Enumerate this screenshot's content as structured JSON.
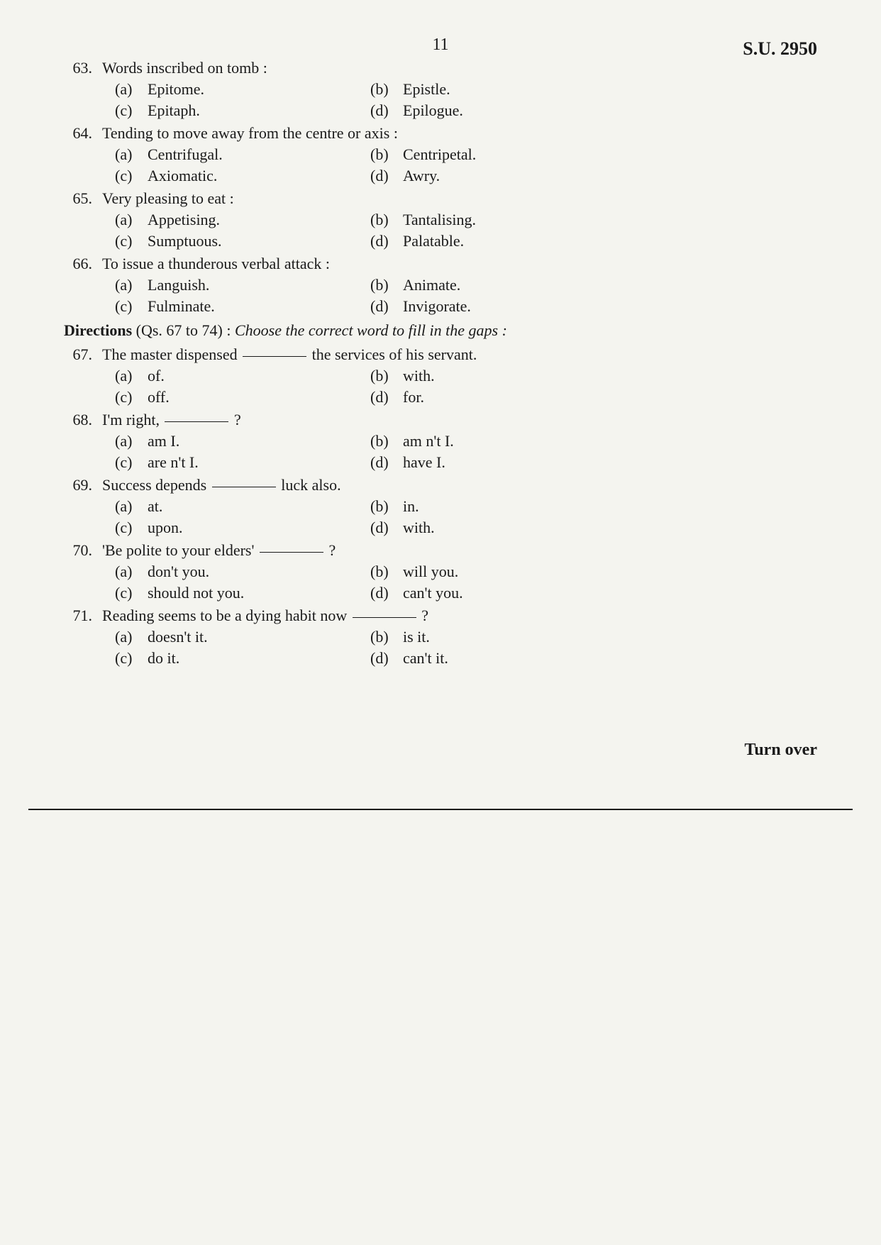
{
  "page_number": "11",
  "header_code": "S.U. 2950",
  "directions_label": "Directions",
  "directions_range": "(Qs. 67 to 74) :",
  "directions_text": "Choose the correct word to fill in the gaps :",
  "turn_over": "Turn over",
  "questions": [
    {
      "num": "63.",
      "text": "Words inscribed on tomb :",
      "opts": {
        "a": "Epitome.",
        "b": "Epistle.",
        "c": "Epitaph.",
        "d": "Epilogue."
      }
    },
    {
      "num": "64.",
      "text": "Tending to move away from the centre or axis :",
      "opts": {
        "a": "Centrifugal.",
        "b": "Centripetal.",
        "c": "Axiomatic.",
        "d": "Awry."
      }
    },
    {
      "num": "65.",
      "text": "Very pleasing to eat :",
      "opts": {
        "a": "Appetising.",
        "b": "Tantalising.",
        "c": "Sumptuous.",
        "d": "Palatable."
      }
    },
    {
      "num": "66.",
      "text": "To issue a thunderous verbal attack :",
      "opts": {
        "a": "Languish.",
        "b": "Animate.",
        "c": "Fulminate.",
        "d": "Invigorate."
      }
    },
    {
      "num": "67.",
      "text_pre": "The master dispensed ",
      "text_post": " the services of his servant.",
      "opts": {
        "a": "of.",
        "b": "with.",
        "c": "off.",
        "d": "for."
      }
    },
    {
      "num": "68.",
      "text_pre": "I'm right, ",
      "text_post": " ?",
      "opts": {
        "a": "am I.",
        "b": "am n't I.",
        "c": "are n't I.",
        "d": "have I."
      }
    },
    {
      "num": "69.",
      "text_pre": "Success depends ",
      "text_post": " luck also.",
      "opts": {
        "a": "at.",
        "b": "in.",
        "c": "upon.",
        "d": "with."
      }
    },
    {
      "num": "70.",
      "text_pre": "'Be polite to your elders' ",
      "text_post": " ?",
      "opts": {
        "a": "don't you.",
        "b": "will you.",
        "c": "should not you.",
        "d": "can't you."
      }
    },
    {
      "num": "71.",
      "text_pre": "Reading seems to be a dying habit now ",
      "text_post": " ?",
      "opts": {
        "a": "doesn't it.",
        "b": "is it.",
        "c": "do it.",
        "d": "can't it."
      }
    }
  ]
}
